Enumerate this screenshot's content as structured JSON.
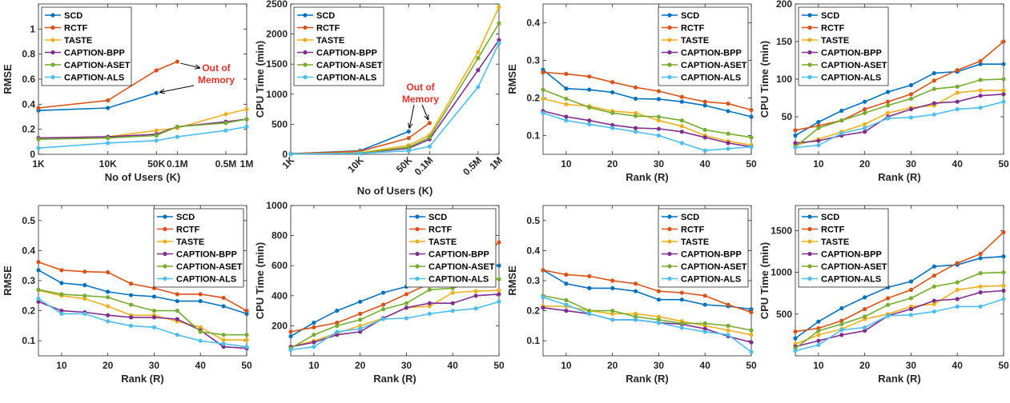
{
  "legend_labels": [
    "SCD",
    "RCTF",
    "TASTE",
    "CAPTION-BPP",
    "CAPTION-ASET",
    "CAPTION-ALS"
  ],
  "series_colors": [
    "#0072bd",
    "#d95319",
    "#edb120",
    "#7e2f8e",
    "#77ac30",
    "#4dbeee"
  ],
  "chart_data": [
    {
      "type": "line",
      "xlabel": "No of Users (K)",
      "ylabel": "RMSE",
      "x": [
        1,
        10,
        50,
        100,
        500,
        1000
      ],
      "xscale": "log",
      "xticks": [
        1,
        10,
        50,
        100,
        500,
        1000
      ],
      "xtick_labels": [
        "1K",
        "10K",
        "50K",
        "0.1M",
        "0.5M",
        "1M"
      ],
      "xtick_rotate": false,
      "ylim": [
        0,
        1.2
      ],
      "yticks": [
        0,
        0.2,
        0.4,
        0.6,
        0.8,
        1.0
      ],
      "ytick_labels": [
        "0",
        "0.2",
        "0.4",
        "0.6",
        "0.8",
        "1"
      ],
      "legend": "top-left",
      "annotation": {
        "text": [
          "Out of",
          "Memory"
        ],
        "arrows": [
          {
            "x": 50,
            "y": 0.49
          },
          {
            "x": 100,
            "y": 0.74
          }
        ]
      },
      "series": [
        {
          "name": "SCD",
          "values": [
            0.35,
            0.37,
            0.49,
            null,
            null,
            null
          ]
        },
        {
          "name": "RCTF",
          "values": [
            0.37,
            0.43,
            0.67,
            0.74,
            null,
            null
          ]
        },
        {
          "name": "TASTE",
          "values": [
            0.13,
            0.14,
            0.19,
            0.21,
            0.32,
            0.36
          ]
        },
        {
          "name": "CAPTION-BPP",
          "values": [
            0.13,
            0.14,
            0.16,
            0.22,
            0.26,
            0.28
          ]
        },
        {
          "name": "CAPTION-ASET",
          "values": [
            0.12,
            0.13,
            0.15,
            0.22,
            0.25,
            0.28
          ]
        },
        {
          "name": "CAPTION-ALS",
          "values": [
            0.05,
            0.09,
            0.11,
            0.14,
            0.19,
            0.22
          ]
        }
      ]
    },
    {
      "type": "line",
      "xlabel": "No of Users (K)",
      "ylabel": "CPU Time (min)",
      "x": [
        1,
        10,
        50,
        100,
        500,
        1000
      ],
      "xscale": "log",
      "xticks": [
        1,
        10,
        50,
        100,
        500,
        1000
      ],
      "xtick_labels": [
        "1K",
        "10K",
        "50K",
        "0.1M",
        "0.5M",
        "1M"
      ],
      "xtick_rotate": true,
      "ylim": [
        0,
        2500
      ],
      "yticks": [
        0,
        500,
        1000,
        1500,
        2000,
        2500
      ],
      "ytick_labels": [
        "0",
        "500",
        "1000",
        "1500",
        "2000",
        "2500"
      ],
      "legend": "top-left",
      "annotation": {
        "text": [
          "Out of",
          "Memory"
        ],
        "arrows": [
          {
            "x": 50,
            "y": 380
          },
          {
            "x": 100,
            "y": 520
          }
        ]
      },
      "series": [
        {
          "name": "SCD",
          "values": [
            10,
            60,
            380,
            null,
            null,
            null
          ]
        },
        {
          "name": "RCTF",
          "values": [
            10,
            50,
            270,
            520,
            null,
            null
          ]
        },
        {
          "name": "TASTE",
          "values": [
            5,
            25,
            150,
            320,
            1700,
            2450
          ]
        },
        {
          "name": "CAPTION-BPP",
          "values": [
            5,
            20,
            100,
            250,
            1400,
            1900
          ]
        },
        {
          "name": "CAPTION-ASET",
          "values": [
            5,
            20,
            120,
            280,
            1600,
            2180
          ]
        },
        {
          "name": "CAPTION-ALS",
          "values": [
            5,
            15,
            60,
            130,
            1120,
            1850
          ]
        }
      ]
    },
    {
      "type": "line",
      "xlabel": "Rank (R)",
      "ylabel": "RMSE",
      "x": [
        5,
        10,
        15,
        20,
        25,
        30,
        35,
        40,
        45,
        50
      ],
      "xscale": "linear",
      "xlim": [
        5,
        50
      ],
      "xticks": [
        10,
        20,
        30,
        40,
        50
      ],
      "xtick_labels": [
        "10",
        "20",
        "30",
        "40",
        "50"
      ],
      "xtick_rotate": false,
      "ylim": [
        0.05,
        0.45
      ],
      "yticks": [
        0.1,
        0.2,
        0.3,
        0.4
      ],
      "ytick_labels": [
        "0.1",
        "0.2",
        "0.3",
        "0.4"
      ],
      "legend": "top-right",
      "series": [
        {
          "name": "SCD",
          "values": [
            0.275,
            0.225,
            0.222,
            0.215,
            0.198,
            0.197,
            0.19,
            0.18,
            0.165,
            0.15
          ]
        },
        {
          "name": "RCTF",
          "values": [
            0.268,
            0.264,
            0.257,
            0.242,
            0.228,
            0.218,
            0.203,
            0.19,
            0.185,
            0.168
          ]
        },
        {
          "name": "TASTE",
          "values": [
            0.198,
            0.183,
            0.178,
            0.165,
            0.16,
            0.14,
            0.125,
            0.1,
            0.085,
            0.075
          ]
        },
        {
          "name": "CAPTION-BPP",
          "values": [
            0.165,
            0.15,
            0.14,
            0.128,
            0.12,
            0.118,
            0.11,
            0.095,
            0.08,
            0.07
          ]
        },
        {
          "name": "CAPTION-ASET",
          "values": [
            0.222,
            0.198,
            0.175,
            0.16,
            0.152,
            0.15,
            0.14,
            0.115,
            0.105,
            0.095
          ]
        },
        {
          "name": "CAPTION-ALS",
          "values": [
            0.16,
            0.14,
            0.13,
            0.12,
            0.11,
            0.1,
            0.08,
            0.06,
            0.065,
            0.07
          ]
        }
      ]
    },
    {
      "type": "line",
      "xlabel": "Rank (R)",
      "ylabel": "CPU Time (min)",
      "x": [
        5,
        10,
        15,
        20,
        25,
        30,
        35,
        40,
        45,
        50
      ],
      "xscale": "linear",
      "xlim": [
        5,
        50
      ],
      "xticks": [
        10,
        20,
        30,
        40,
        50
      ],
      "xtick_labels": [
        "10",
        "20",
        "30",
        "40",
        "50"
      ],
      "xtick_rotate": false,
      "ylim": [
        0,
        200
      ],
      "yticks": [
        50,
        100,
        150,
        200
      ],
      "ytick_labels": [
        "50",
        "100",
        "150",
        "200"
      ],
      "legend": "top-left",
      "series": [
        {
          "name": "SCD",
          "values": [
            25,
            43,
            58,
            70,
            83,
            92,
            108,
            110,
            120,
            120
          ]
        },
        {
          "name": "RCTF",
          "values": [
            32,
            38,
            45,
            60,
            70,
            80,
            98,
            112,
            124,
            150
          ]
        },
        {
          "name": "TASTE",
          "values": [
            12,
            20,
            30,
            40,
            55,
            62,
            65,
            82,
            85,
            85
          ]
        },
        {
          "name": "CAPTION-BPP",
          "values": [
            15,
            18,
            25,
            30,
            50,
            60,
            68,
            70,
            78,
            80
          ]
        },
        {
          "name": "CAPTION-ASET",
          "values": [
            10,
            35,
            45,
            55,
            65,
            74,
            87,
            90,
            99,
            100
          ]
        },
        {
          "name": "CAPTION-ALS",
          "values": [
            9,
            12,
            28,
            35,
            48,
            49,
            53,
            60,
            62,
            70
          ]
        }
      ]
    },
    {
      "type": "line",
      "xlabel": "Rank (R)",
      "ylabel": "RMSE",
      "x": [
        5,
        10,
        15,
        20,
        25,
        30,
        35,
        40,
        45,
        50
      ],
      "xscale": "linear",
      "xlim": [
        5,
        50
      ],
      "xticks": [
        10,
        20,
        30,
        40,
        50
      ],
      "xtick_labels": [
        "10",
        "20",
        "30",
        "40",
        "50"
      ],
      "xtick_rotate": false,
      "ylim": [
        0.05,
        0.55
      ],
      "yticks": [
        0.1,
        0.2,
        0.3,
        0.4,
        0.5
      ],
      "ytick_labels": [
        "0.1",
        "0.2",
        "0.3",
        "0.4",
        "0.5"
      ],
      "legend": "top-right",
      "series": [
        {
          "name": "SCD",
          "values": [
            0.335,
            0.292,
            0.285,
            0.263,
            0.252,
            0.247,
            0.232,
            0.232,
            0.215,
            0.19
          ]
        },
        {
          "name": "RCTF",
          "values": [
            0.362,
            0.335,
            0.33,
            0.328,
            0.29,
            0.275,
            0.255,
            0.255,
            0.243,
            0.2
          ]
        },
        {
          "name": "TASTE",
          "values": [
            0.268,
            0.25,
            0.24,
            0.215,
            0.185,
            0.185,
            0.165,
            0.145,
            0.103,
            0.103
          ]
        },
        {
          "name": "CAPTION-BPP",
          "values": [
            0.23,
            0.2,
            0.195,
            0.185,
            0.178,
            0.178,
            0.172,
            0.135,
            0.08,
            0.075
          ]
        },
        {
          "name": "CAPTION-ASET",
          "values": [
            0.27,
            0.255,
            0.25,
            0.245,
            0.22,
            0.2,
            0.2,
            0.13,
            0.12,
            0.12
          ]
        },
        {
          "name": "CAPTION-ALS",
          "values": [
            0.24,
            0.19,
            0.19,
            0.165,
            0.15,
            0.145,
            0.12,
            0.1,
            0.09,
            0.08
          ]
        }
      ]
    },
    {
      "type": "line",
      "xlabel": "Rank (R)",
      "ylabel": "CPU Time (min)",
      "x": [
        5,
        10,
        15,
        20,
        25,
        30,
        35,
        40,
        45,
        50
      ],
      "xscale": "linear",
      "xlim": [
        5,
        50
      ],
      "xticks": [
        10,
        20,
        30,
        40,
        50
      ],
      "xtick_labels": [
        "10",
        "20",
        "30",
        "40",
        "50"
      ],
      "xtick_rotate": false,
      "ylim": [
        0,
        1000
      ],
      "yticks": [
        200,
        400,
        600,
        800,
        1000
      ],
      "ytick_labels": [
        "200",
        "400",
        "600",
        "800",
        "1000"
      ],
      "legend": "top-right",
      "series": [
        {
          "name": "SCD",
          "values": [
            130,
            220,
            300,
            360,
            420,
            460,
            555,
            555,
            610,
            600
          ]
        },
        {
          "name": "RCTF",
          "values": [
            160,
            190,
            220,
            280,
            340,
            410,
            480,
            575,
            620,
            755
          ]
        },
        {
          "name": "TASTE",
          "values": [
            60,
            100,
            150,
            200,
            250,
            320,
            330,
            420,
            430,
            435
          ]
        },
        {
          "name": "CAPTION-BPP",
          "values": [
            60,
            90,
            140,
            160,
            250,
            320,
            350,
            350,
            400,
            410
          ]
        },
        {
          "name": "CAPTION-ASET",
          "values": [
            50,
            140,
            200,
            240,
            310,
            350,
            440,
            450,
            500,
            510
          ]
        },
        {
          "name": "CAPTION-ALS",
          "values": [
            40,
            60,
            160,
            180,
            245,
            250,
            280,
            300,
            315,
            360
          ]
        }
      ]
    },
    {
      "type": "line",
      "xlabel": "Rank (R)",
      "ylabel": "RMSE",
      "x": [
        5,
        10,
        15,
        20,
        25,
        30,
        35,
        40,
        45,
        50
      ],
      "xscale": "linear",
      "xlim": [
        5,
        50
      ],
      "xticks": [
        10,
        20,
        30,
        40,
        50
      ],
      "xtick_labels": [
        "10",
        "20",
        "30",
        "40",
        "50"
      ],
      "xtick_rotate": false,
      "ylim": [
        0.05,
        0.55
      ],
      "yticks": [
        0.1,
        0.2,
        0.3,
        0.4,
        0.5
      ],
      "ytick_labels": [
        "0.1",
        "0.2",
        "0.3",
        "0.4",
        "0.5"
      ],
      "legend": "top-right",
      "series": [
        {
          "name": "SCD",
          "values": [
            0.335,
            0.29,
            0.275,
            0.275,
            0.265,
            0.237,
            0.237,
            0.22,
            0.215,
            0.205
          ]
        },
        {
          "name": "RCTF",
          "values": [
            0.335,
            0.32,
            0.315,
            0.3,
            0.29,
            0.265,
            0.26,
            0.25,
            0.22,
            0.195
          ]
        },
        {
          "name": "TASTE",
          "values": [
            0.215,
            0.215,
            0.2,
            0.19,
            0.19,
            0.18,
            0.165,
            0.15,
            0.135,
            0.12
          ]
        },
        {
          "name": "CAPTION-BPP",
          "values": [
            0.21,
            0.2,
            0.19,
            0.17,
            0.17,
            0.16,
            0.155,
            0.14,
            0.115,
            0.095
          ]
        },
        {
          "name": "CAPTION-ASET",
          "values": [
            0.25,
            0.235,
            0.2,
            0.2,
            0.18,
            0.17,
            0.158,
            0.158,
            0.15,
            0.135
          ]
        },
        {
          "name": "CAPTION-ALS",
          "values": [
            0.245,
            0.22,
            0.19,
            0.17,
            0.17,
            0.16,
            0.143,
            0.13,
            0.12,
            0.063
          ]
        }
      ]
    },
    {
      "type": "line",
      "xlabel": "Rank (R)",
      "ylabel": "CPU Time (min)",
      "x": [
        5,
        10,
        15,
        20,
        25,
        30,
        35,
        40,
        45,
        50
      ],
      "xscale": "linear",
      "xlim": [
        5,
        50
      ],
      "xticks": [
        10,
        20,
        30,
        40,
        50
      ],
      "xtick_labels": [
        "10",
        "20",
        "30",
        "40",
        "50"
      ],
      "xtick_rotate": false,
      "ylim": [
        0,
        1800
      ],
      "yticks": [
        500,
        1000,
        1500
      ],
      "ytick_labels": [
        "500",
        "1000",
        "1500"
      ],
      "legend": "top-left",
      "series": [
        {
          "name": "SCD",
          "values": [
            210,
            410,
            570,
            700,
            820,
            890,
            1070,
            1090,
            1170,
            1190
          ]
        },
        {
          "name": "RCTF",
          "values": [
            290,
            330,
            420,
            560,
            690,
            790,
            960,
            1110,
            1220,
            1480
          ]
        },
        {
          "name": "TASTE",
          "values": [
            140,
            250,
            320,
            440,
            500,
            590,
            620,
            790,
            830,
            840
          ]
        },
        {
          "name": "CAPTION-BPP",
          "values": [
            110,
            180,
            250,
            300,
            480,
            560,
            660,
            680,
            760,
            780
          ]
        },
        {
          "name": "CAPTION-ASET",
          "values": [
            90,
            300,
            380,
            470,
            610,
            690,
            830,
            880,
            990,
            1000
          ]
        },
        {
          "name": "CAPTION-ALS",
          "values": [
            60,
            130,
            310,
            340,
            480,
            490,
            530,
            590,
            590,
            680
          ]
        }
      ]
    }
  ]
}
